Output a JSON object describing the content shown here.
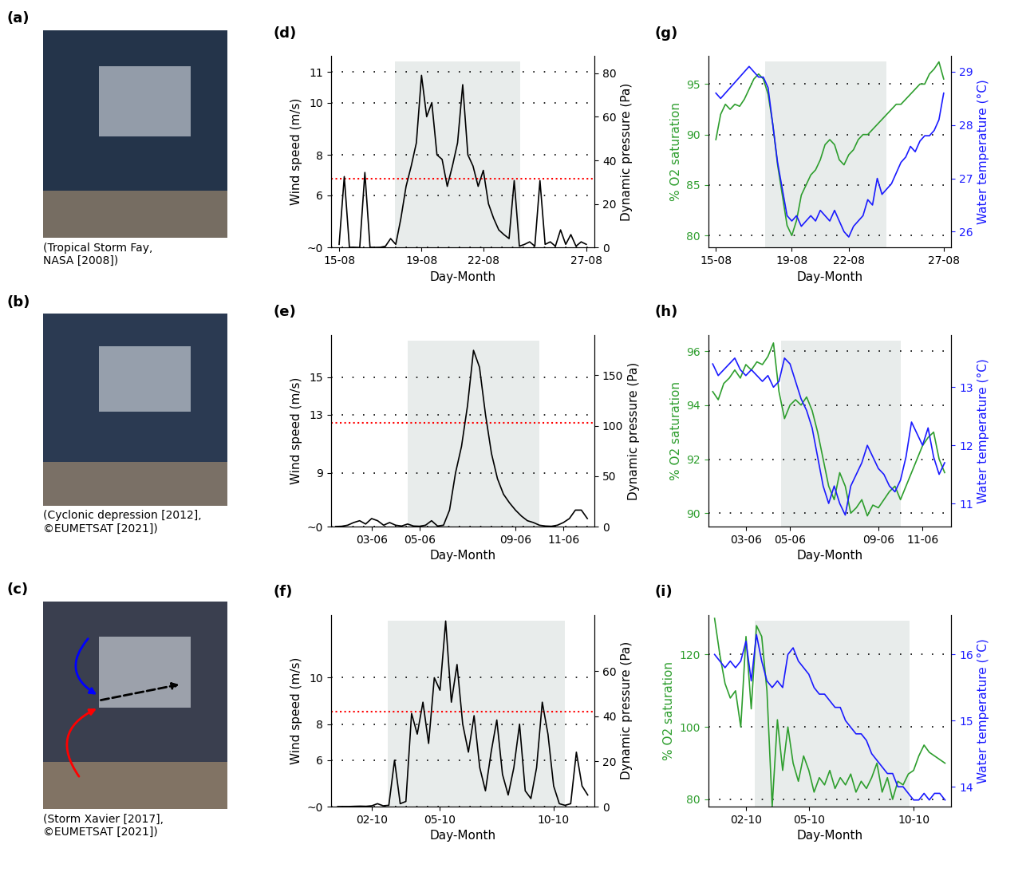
{
  "chart_data": [
    {
      "type": "image",
      "title": "(a)",
      "caption": "(Tropical Storm Fay,\nNASA [2008])"
    },
    {
      "type": "image",
      "title": "(b)",
      "caption": "(Cyclonic depression [2012],\n©EUMETSAT [2021])"
    },
    {
      "type": "image",
      "title": "(c)",
      "caption": "(Storm Xavier [2017],\n©EUMETSAT [2021])"
    },
    {
      "type": "line",
      "title": "(d)",
      "xlabel": "Day-Month",
      "ylabel": "Wind speed (m/s)",
      "y2label": "Dynamic pressure (Pa)",
      "x": [
        15.0,
        15.25,
        15.5,
        15.75,
        16.0,
        16.25,
        16.5,
        16.75,
        17.0,
        17.25,
        17.5,
        17.75,
        18.0,
        18.25,
        18.5,
        18.75,
        19.0,
        19.25,
        19.5,
        19.75,
        20.0,
        20.25,
        20.5,
        20.75,
        21.0,
        21.25,
        21.5,
        21.75,
        22.0,
        22.25,
        22.5,
        22.75,
        23.0,
        23.25,
        23.5,
        23.75,
        24.0,
        24.25,
        24.5,
        24.75,
        25.0,
        25.25,
        25.5,
        25.75,
        26.0,
        26.25,
        26.5,
        26.75,
        27.0
      ],
      "series": [
        {
          "color": "#000000",
          "values": [
            1.5,
            7.0,
            0.5,
            0.5,
            0.3,
            7.2,
            0.5,
            0.4,
            0.5,
            1.0,
            2.5,
            1.5,
            4.5,
            6.5,
            7.5,
            8.5,
            10.9,
            9.5,
            10.0,
            8.0,
            7.8,
            6.5,
            7.5,
            8.5,
            10.6,
            8.0,
            7.5,
            6.5,
            7.3,
            5.5,
            4.5,
            3.5,
            3.0,
            2.5,
            6.8,
            1.0,
            1.5,
            2.0,
            1.0,
            6.8,
            1.5,
            2.0,
            1.0,
            3.5,
            1.5,
            3.0,
            1.0,
            2.0,
            1.5
          ]
        }
      ],
      "xlim": [
        14.6,
        27.4
      ],
      "xticks": [
        {
          "value": 15,
          "label": "15-08"
        },
        {
          "value": 19,
          "label": "19-08"
        },
        {
          "value": 22,
          "label": "22-08"
        },
        {
          "value": 27,
          "label": "27-08"
        }
      ],
      "ylim": [
        0,
        11.5
      ],
      "yticks": [
        {
          "value": 0,
          "label": "~0"
        },
        6,
        8,
        10,
        11
      ],
      "y2lim": [
        0,
        88
      ],
      "y2ticks": [
        0,
        20,
        40,
        60,
        80
      ],
      "threshold": 6.9,
      "shade": [
        17.7,
        23.8
      ],
      "grid": true
    },
    {
      "type": "line",
      "title": "(e)",
      "xlabel": "Day-Month",
      "ylabel": "Wind speed (m/s)",
      "y2label": "Dynamic pressure (Pa)",
      "x": [
        1.5,
        1.75,
        2.0,
        2.25,
        2.5,
        2.75,
        3.0,
        3.25,
        3.5,
        3.75,
        4.0,
        4.25,
        4.5,
        4.75,
        5.0,
        5.25,
        5.5,
        5.75,
        6.0,
        6.25,
        6.5,
        6.75,
        7.0,
        7.25,
        7.5,
        7.75,
        8.0,
        8.25,
        8.5,
        8.75,
        9.0,
        9.25,
        9.5,
        9.75,
        10.0,
        10.25,
        10.5,
        10.75,
        11.0,
        11.25,
        11.5,
        11.75,
        12.0
      ],
      "series": [
        {
          "color": "#000000",
          "values": [
            0.5,
            0.8,
            1.5,
            2.5,
            3.0,
            2.0,
            3.5,
            3.0,
            1.5,
            2.5,
            1.5,
            1.0,
            2.0,
            1.0,
            0.8,
            1.5,
            3.0,
            1.0,
            1.5,
            5.0,
            9.0,
            11.0,
            13.5,
            16.3,
            15.5,
            13.0,
            10.5,
            8.5,
            7.0,
            6.0,
            5.0,
            4.0,
            3.0,
            2.5,
            1.5,
            1.0,
            0.8,
            1.5,
            2.5,
            3.5,
            5.0,
            5.0,
            3.5
          ]
        }
      ],
      "xlim": [
        1.3,
        12.3
      ],
      "xticks": [
        {
          "value": 3,
          "label": "03-06"
        },
        {
          "value": 5,
          "label": "05-06"
        },
        {
          "value": 9,
          "label": "09-06"
        },
        {
          "value": 11,
          "label": "11-06"
        }
      ],
      "ylim": [
        0,
        17
      ],
      "yticks": [
        {
          "value": 0,
          "label": "~0"
        },
        9,
        13,
        15
      ],
      "y2lim": [
        0,
        190
      ],
      "y2ticks": [
        0,
        50,
        100,
        150
      ],
      "threshold": 12.5,
      "shade": [
        4.5,
        10.0
      ],
      "grid": true
    },
    {
      "type": "line",
      "title": "(f)",
      "xlabel": "Day-Month",
      "ylabel": "Wind speed (m/s)",
      "y2label": "Dynamic pressure (Pa)",
      "x": [
        0.5,
        0.75,
        1.0,
        1.25,
        1.5,
        1.75,
        2.0,
        2.25,
        2.5,
        2.75,
        3.0,
        3.25,
        3.5,
        3.75,
        4.0,
        4.25,
        4.5,
        4.75,
        5.0,
        5.25,
        5.5,
        5.75,
        6.0,
        6.25,
        6.5,
        6.75,
        7.0,
        7.25,
        7.5,
        7.75,
        8.0,
        8.25,
        8.5,
        8.75,
        9.0,
        9.25,
        9.5,
        9.75,
        10.0,
        10.25,
        10.5,
        10.75,
        11.0,
        11.25,
        11.5
      ],
      "series": [
        {
          "color": "#000000",
          "values": [
            0.2,
            0.3,
            0.3,
            0.5,
            0.6,
            0.5,
            0.8,
            1.5,
            0.8,
            1.0,
            6.0,
            1.5,
            2.0,
            8.5,
            7.5,
            9.0,
            7.0,
            10.0,
            9.5,
            12.0,
            9.0,
            10.5,
            8.0,
            6.5,
            8.4,
            5.5,
            3.5,
            6.5,
            8.2,
            5.0,
            3.0,
            5.5,
            8.0,
            3.5,
            2.5,
            5.5,
            9.0,
            7.5,
            4.0,
            1.5,
            1.0,
            1.5,
            6.5,
            4.0,
            3.0
          ]
        }
      ],
      "xlim": [
        0.2,
        11.8
      ],
      "xticks": [
        {
          "value": 2,
          "label": "02-10"
        },
        {
          "value": 5,
          "label": "05-10"
        },
        {
          "value": 10,
          "label": "10-10"
        }
      ],
      "ylim": [
        0,
        12.2
      ],
      "yticks": [
        {
          "value": 0,
          "label": "~0"
        },
        6,
        8,
        10
      ],
      "y2lim": [
        0,
        85
      ],
      "y2ticks": [
        0,
        20,
        40,
        60
      ],
      "threshold": 8.6,
      "shade": [
        2.7,
        10.5
      ],
      "grid": true
    },
    {
      "type": "line",
      "title": "(g)",
      "xlabel": "Day-Month",
      "ylabel": "% O2 saturation",
      "y2label": "Water temperature (°C)",
      "x": [
        15.0,
        15.25,
        15.5,
        15.75,
        16.0,
        16.25,
        16.5,
        16.75,
        17.0,
        17.25,
        17.5,
        17.75,
        18.0,
        18.25,
        18.5,
        18.75,
        19.0,
        19.25,
        19.5,
        19.75,
        20.0,
        20.25,
        20.5,
        20.75,
        21.0,
        21.25,
        21.5,
        21.75,
        22.0,
        22.25,
        22.5,
        22.75,
        23.0,
        23.25,
        23.5,
        23.75,
        24.0,
        24.25,
        24.5,
        24.75,
        25.0,
        25.25,
        25.5,
        25.75,
        26.0,
        26.25,
        26.5,
        26.75,
        27.0
      ],
      "series": [
        {
          "color": "#2e9e2e",
          "values": [
            89.5,
            92,
            93,
            92.5,
            93,
            92.8,
            93.5,
            94.5,
            95.5,
            96,
            95.5,
            94,
            91,
            87,
            84,
            81,
            80,
            81.5,
            84,
            85,
            86,
            86.5,
            87.5,
            89,
            89.5,
            89,
            87.5,
            87,
            88,
            88.5,
            89.5,
            90,
            90,
            90.5,
            91,
            91.5,
            92,
            92.5,
            93,
            93,
            93.5,
            94,
            94.5,
            95,
            95,
            96,
            96.5,
            97.2,
            95.5
          ]
        },
        {
          "color": "#1a1aff",
          "axis": "y2",
          "values": [
            28.6,
            28.5,
            28.6,
            28.7,
            28.8,
            28.9,
            29.0,
            29.1,
            29.0,
            28.9,
            28.9,
            28.7,
            28.0,
            27.3,
            26.8,
            26.3,
            26.2,
            26.3,
            26.1,
            26.2,
            26.3,
            26.2,
            26.4,
            26.3,
            26.2,
            26.4,
            26.2,
            26.0,
            25.9,
            26.1,
            26.2,
            26.3,
            26.6,
            26.5,
            27.0,
            26.7,
            26.8,
            26.9,
            27.1,
            27.3,
            27.4,
            27.6,
            27.5,
            27.7,
            27.8,
            27.8,
            27.9,
            28.1,
            28.6
          ]
        }
      ],
      "xlim": [
        14.6,
        27.4
      ],
      "xticks": [
        {
          "value": 15,
          "label": "15-08"
        },
        {
          "value": 19,
          "label": "19-08"
        },
        {
          "value": 22,
          "label": "22-08"
        },
        {
          "value": 27,
          "label": "27-08"
        }
      ],
      "ylim": [
        78.8,
        97.8
      ],
      "yticks": [
        80,
        85,
        90,
        95
      ],
      "y2lim": [
        25.7,
        29.3
      ],
      "y2ticks": [
        26,
        27,
        28,
        29
      ],
      "shade": [
        17.6,
        24.0
      ],
      "grid": true
    },
    {
      "type": "line",
      "title": "(h)",
      "xlabel": "Day-Month",
      "ylabel": "% O2 saturation",
      "y2label": "Water temperature (°C)",
      "x": [
        1.5,
        1.75,
        2.0,
        2.25,
        2.5,
        2.75,
        3.0,
        3.25,
        3.5,
        3.75,
        4.0,
        4.25,
        4.5,
        4.75,
        5.0,
        5.25,
        5.5,
        5.75,
        6.0,
        6.25,
        6.5,
        6.75,
        7.0,
        7.25,
        7.5,
        7.75,
        8.0,
        8.25,
        8.5,
        8.75,
        9.0,
        9.25,
        9.5,
        9.75,
        10.0,
        10.25,
        10.5,
        10.75,
        11.0,
        11.25,
        11.5,
        11.75,
        12.0
      ],
      "series": [
        {
          "color": "#2e9e2e",
          "values": [
            94.5,
            94.2,
            94.8,
            95.0,
            95.3,
            95.0,
            95.5,
            95.3,
            95.6,
            95.5,
            95.8,
            96.3,
            94.5,
            93.5,
            94.0,
            94.2,
            94.0,
            94.3,
            93.8,
            93.0,
            92.0,
            91.0,
            90.5,
            91.5,
            91.0,
            90.0,
            90.2,
            90.5,
            89.9,
            90.3,
            90.2,
            90.5,
            90.8,
            91.0,
            90.5,
            91.0,
            91.5,
            92.0,
            92.5,
            92.8,
            93.0,
            92.0,
            91.5
          ]
        },
        {
          "color": "#1a1aff",
          "axis": "y2",
          "values": [
            13.4,
            13.2,
            13.3,
            13.4,
            13.5,
            13.3,
            13.2,
            13.3,
            13.2,
            13.1,
            13.2,
            13.0,
            13.1,
            13.5,
            13.4,
            13.1,
            12.8,
            12.6,
            12.3,
            11.8,
            11.3,
            11.0,
            11.3,
            11.0,
            10.8,
            11.3,
            11.5,
            11.7,
            12.0,
            11.8,
            11.6,
            11.5,
            11.3,
            11.2,
            11.4,
            11.8,
            12.4,
            12.2,
            12.0,
            12.3,
            11.8,
            11.5,
            11.7
          ]
        }
      ],
      "xlim": [
        1.3,
        12.3
      ],
      "xticks": [
        {
          "value": 3,
          "label": "03-06"
        },
        {
          "value": 5,
          "label": "05-06"
        },
        {
          "value": 9,
          "label": "09-06"
        },
        {
          "value": 11,
          "label": "11-06"
        }
      ],
      "ylim": [
        89.5,
        96.6
      ],
      "yticks": [
        90,
        92,
        94,
        96
      ],
      "y2lim": [
        10.6,
        13.9
      ],
      "y2ticks": [
        11,
        12,
        13
      ],
      "shade": [
        4.6,
        10.0
      ],
      "grid": true
    },
    {
      "type": "line",
      "title": "(i)",
      "xlabel": "Day-Month",
      "ylabel": "% O2 saturation",
      "y2label": "Water temperature (°C)",
      "x": [
        0.5,
        0.75,
        1.0,
        1.25,
        1.5,
        1.75,
        2.0,
        2.25,
        2.5,
        2.75,
        3.0,
        3.25,
        3.5,
        3.75,
        4.0,
        4.25,
        4.5,
        4.75,
        5.0,
        5.25,
        5.5,
        5.75,
        6.0,
        6.25,
        6.5,
        6.75,
        7.0,
        7.25,
        7.5,
        7.75,
        8.0,
        8.25,
        8.5,
        8.75,
        9.0,
        9.25,
        9.5,
        9.75,
        10.0,
        10.25,
        10.5,
        10.75,
        11.0,
        11.25,
        11.5
      ],
      "series": [
        {
          "color": "#2e9e2e",
          "values": [
            130,
            120,
            112,
            108,
            110,
            100,
            125,
            105,
            128,
            125,
            110,
            78,
            102,
            88,
            100,
            90,
            85,
            92,
            88,
            82,
            86,
            84,
            88,
            83,
            86,
            84,
            87,
            82,
            85,
            83,
            86,
            90,
            82,
            86,
            80,
            85,
            84,
            87,
            88,
            92,
            95,
            93,
            92,
            91,
            90
          ]
        },
        {
          "color": "#1a1aff",
          "axis": "y2",
          "values": [
            16.0,
            15.9,
            15.8,
            15.9,
            15.8,
            15.9,
            16.2,
            15.6,
            16.3,
            15.9,
            15.6,
            15.5,
            15.6,
            15.5,
            16.0,
            16.1,
            15.9,
            15.8,
            15.7,
            15.5,
            15.4,
            15.4,
            15.3,
            15.2,
            15.2,
            15.0,
            14.9,
            14.8,
            14.8,
            14.7,
            14.5,
            14.4,
            14.3,
            14.2,
            14.2,
            14.0,
            14.0,
            13.9,
            13.8,
            13.8,
            13.9,
            13.8,
            13.9,
            13.9,
            13.8
          ]
        }
      ],
      "xlim": [
        0.2,
        11.8
      ],
      "xticks": [
        {
          "value": 2,
          "label": "02-10"
        },
        {
          "value": 5,
          "label": "05-10"
        },
        {
          "value": 10,
          "label": "10-10"
        }
      ],
      "ylim": [
        78,
        131
      ],
      "yticks": [
        80,
        100,
        120
      ],
      "y2lim": [
        13.7,
        16.6
      ],
      "y2ticks": [
        14,
        15,
        16
      ],
      "shade": [
        2.4,
        9.8
      ],
      "grid": true
    }
  ]
}
